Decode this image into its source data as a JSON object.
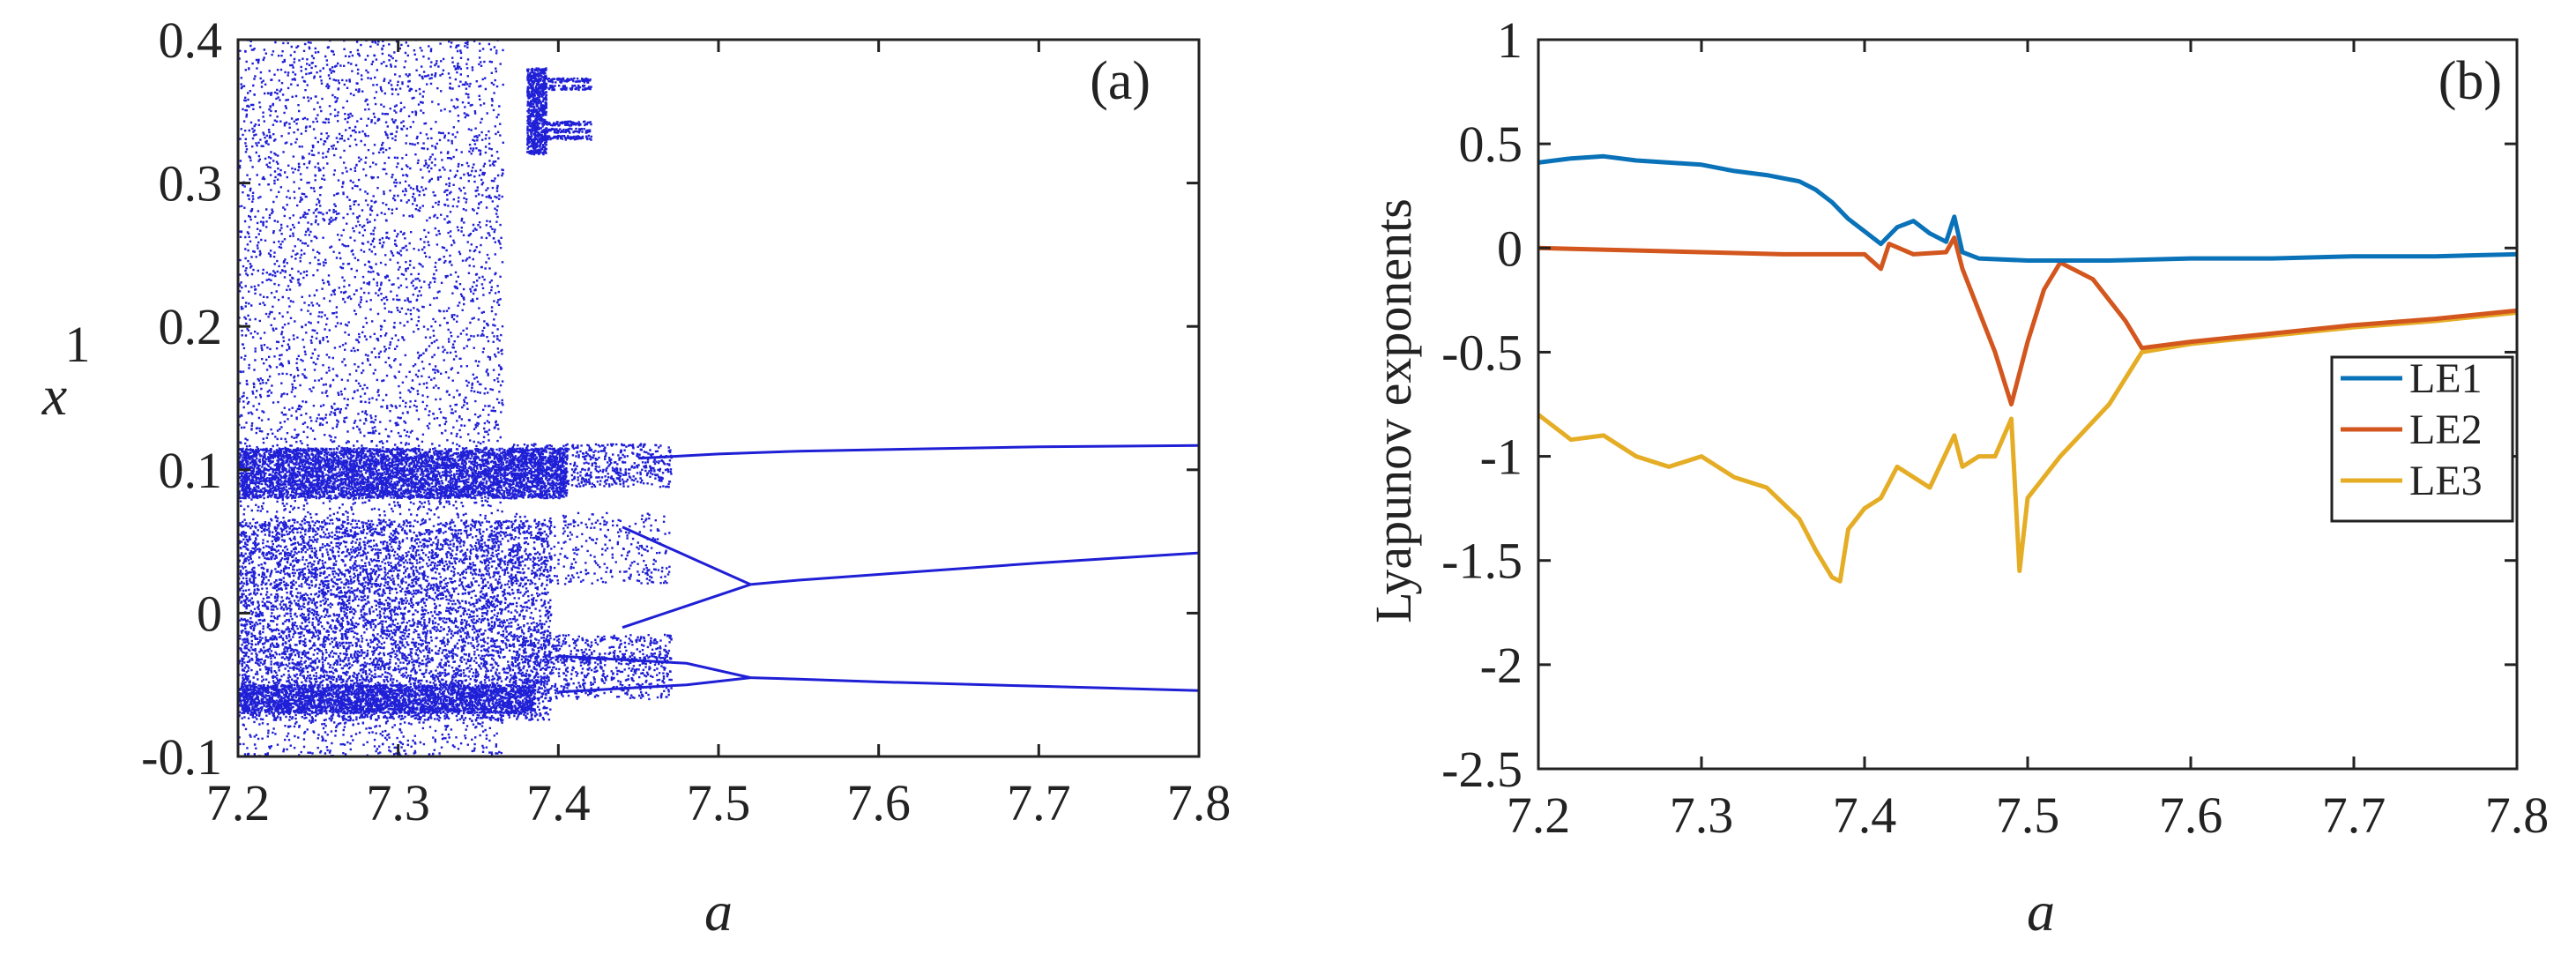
{
  "chart_data": [
    {
      "type": "scatter",
      "panel_label": "(a)",
      "title": "",
      "xlabel": "a",
      "ylabel_main": "x",
      "ylabel_sub": "1",
      "xlim": [
        7.2,
        7.8
      ],
      "ylim": [
        -0.1,
        0.4
      ],
      "xticks": [
        "7.2",
        "7.3",
        "7.4",
        "7.5",
        "7.6",
        "7.7",
        "7.8"
      ],
      "xtick_values": [
        7.2,
        7.3,
        7.4,
        7.5,
        7.6,
        7.7,
        7.8
      ],
      "yticks": [
        "-0.1",
        "0",
        "0.1",
        "0.2",
        "0.3",
        "0.4"
      ],
      "ytick_values": [
        -0.1,
        0,
        0.1,
        0.2,
        0.3,
        0.4
      ],
      "color": "#1f1fd6",
      "chaotic_region": {
        "a_range": [
          7.2,
          7.365
        ],
        "x_range": [
          -0.1,
          0.4
        ]
      },
      "window_region": {
        "a_range": [
          7.38,
          7.42
        ],
        "x_range": [
          0.32,
          0.38
        ]
      },
      "branches": [
        {
          "name": "upper",
          "a": [
            7.45,
            7.5,
            7.55,
            7.6,
            7.7,
            7.8
          ],
          "x": [
            0.108,
            0.111,
            0.113,
            0.114,
            0.116,
            0.117
          ]
        },
        {
          "name": "middle",
          "a": [
            7.52,
            7.55,
            7.6,
            7.7,
            7.8
          ],
          "x": [
            0.02,
            0.023,
            0.027,
            0.035,
            0.042
          ]
        },
        {
          "name": "lower",
          "a": [
            7.52,
            7.55,
            7.6,
            7.7,
            7.8
          ],
          "x": [
            -0.045,
            -0.046,
            -0.048,
            -0.051,
            -0.054
          ]
        },
        {
          "name": "fork-upper",
          "a": [
            7.44,
            7.48,
            7.52
          ],
          "x": [
            0.06,
            0.04,
            0.02
          ]
        },
        {
          "name": "fork-lower",
          "a": [
            7.44,
            7.48,
            7.52
          ],
          "x": [
            -0.01,
            0.005,
            0.02
          ]
        },
        {
          "name": "fork2-upper",
          "a": [
            7.4,
            7.48,
            7.52
          ],
          "x": [
            -0.03,
            -0.035,
            -0.045
          ]
        },
        {
          "name": "fork2-lower",
          "a": [
            7.4,
            7.48,
            7.52
          ],
          "x": [
            -0.055,
            -0.05,
            -0.045
          ]
        }
      ]
    },
    {
      "type": "line",
      "panel_label": "(b)",
      "title": "",
      "xlabel": "a",
      "ylabel": "Lyapunov exponents",
      "xlim": [
        7.2,
        7.8
      ],
      "ylim": [
        -2.5,
        1
      ],
      "xticks": [
        "7.2",
        "7.3",
        "7.4",
        "7.5",
        "7.6",
        "7.7",
        "7.8"
      ],
      "xtick_values": [
        7.2,
        7.3,
        7.4,
        7.5,
        7.6,
        7.7,
        7.8
      ],
      "yticks": [
        "1",
        "0.5",
        "0",
        "-0.5",
        "-1",
        "-1.5",
        "-2",
        "-2.5"
      ],
      "ytick_values": [
        1,
        0.5,
        0,
        -0.5,
        -1,
        -1.5,
        -2,
        -2.5
      ],
      "legend_position": "right",
      "series": [
        {
          "name": "LE1",
          "color": "#0a72b8",
          "x": [
            7.2,
            7.22,
            7.24,
            7.26,
            7.28,
            7.3,
            7.32,
            7.34,
            7.36,
            7.37,
            7.38,
            7.39,
            7.4,
            7.41,
            7.42,
            7.43,
            7.44,
            7.45,
            7.455,
            7.46,
            7.47,
            7.5,
            7.55,
            7.6,
            7.65,
            7.7,
            7.75,
            7.8
          ],
          "y": [
            0.41,
            0.43,
            0.44,
            0.42,
            0.41,
            0.4,
            0.37,
            0.35,
            0.32,
            0.28,
            0.22,
            0.14,
            0.08,
            0.02,
            0.1,
            0.13,
            0.07,
            0.03,
            0.15,
            -0.02,
            -0.05,
            -0.06,
            -0.06,
            -0.05,
            -0.05,
            -0.04,
            -0.04,
            -0.03
          ]
        },
        {
          "name": "LE2",
          "color": "#d2561e",
          "x": [
            7.2,
            7.25,
            7.3,
            7.35,
            7.4,
            7.41,
            7.415,
            7.43,
            7.45,
            7.455,
            7.46,
            7.47,
            7.48,
            7.49,
            7.5,
            7.51,
            7.52,
            7.54,
            7.56,
            7.57,
            7.6,
            7.65,
            7.7,
            7.75,
            7.8
          ],
          "y": [
            0.0,
            -0.01,
            -0.02,
            -0.03,
            -0.03,
            -0.1,
            0.02,
            -0.03,
            -0.02,
            0.05,
            -0.1,
            -0.3,
            -0.5,
            -0.75,
            -0.45,
            -0.2,
            -0.07,
            -0.15,
            -0.35,
            -0.48,
            -0.45,
            -0.41,
            -0.37,
            -0.34,
            -0.3
          ]
        },
        {
          "name": "LE3",
          "color": "#e5ad25",
          "x": [
            7.2,
            7.22,
            7.24,
            7.26,
            7.28,
            7.3,
            7.32,
            7.34,
            7.36,
            7.37,
            7.38,
            7.385,
            7.39,
            7.4,
            7.41,
            7.42,
            7.44,
            7.455,
            7.46,
            7.47,
            7.48,
            7.49,
            7.495,
            7.5,
            7.52,
            7.55,
            7.57,
            7.6,
            7.65,
            7.7,
            7.75,
            7.8
          ],
          "y": [
            -0.8,
            -0.92,
            -0.9,
            -1.0,
            -1.05,
            -1.0,
            -1.1,
            -1.15,
            -1.3,
            -1.45,
            -1.58,
            -1.6,
            -1.35,
            -1.25,
            -1.2,
            -1.05,
            -1.15,
            -0.9,
            -1.05,
            -1.0,
            -1.0,
            -0.82,
            -1.55,
            -1.2,
            -1.0,
            -0.75,
            -0.5,
            -0.46,
            -0.42,
            -0.38,
            -0.35,
            -0.31
          ]
        }
      ]
    }
  ]
}
